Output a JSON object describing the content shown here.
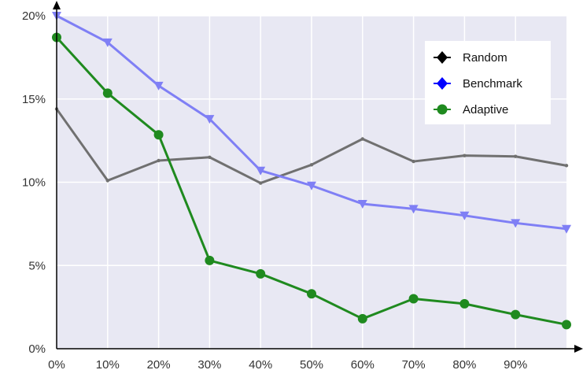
{
  "chart_data": {
    "type": "line",
    "x": [
      0,
      10,
      20,
      30,
      40,
      50,
      60,
      70,
      80,
      90,
      100
    ],
    "xlim": [
      0,
      100
    ],
    "ylim": [
      0,
      20
    ],
    "x_ticks": [
      {
        "value": 0,
        "label": "0%"
      },
      {
        "value": 10,
        "label": "10%"
      },
      {
        "value": 20,
        "label": "20%"
      },
      {
        "value": 30,
        "label": "30%"
      },
      {
        "value": 40,
        "label": "40%"
      },
      {
        "value": 50,
        "label": "50%"
      },
      {
        "value": 60,
        "label": "60%"
      },
      {
        "value": 70,
        "label": "70%"
      },
      {
        "value": 80,
        "label": "80%"
      },
      {
        "value": 90,
        "label": "90%"
      }
    ],
    "y_ticks": [
      {
        "value": 0,
        "label": "0%"
      },
      {
        "value": 5,
        "label": "5%"
      },
      {
        "value": 10,
        "label": "10%"
      },
      {
        "value": 15,
        "label": "15%"
      },
      {
        "value": 20,
        "label": "20%"
      }
    ],
    "grid": true,
    "legend_position": "top-right",
    "series": [
      {
        "name": "Random",
        "color": "#707070",
        "legend_color": "#000000",
        "marker": "diamond",
        "show_markers": false,
        "values": [
          14.4,
          10.1,
          11.3,
          11.5,
          9.95,
          11.05,
          12.6,
          11.25,
          11.6,
          11.55,
          11.0
        ]
      },
      {
        "name": "Benchmark",
        "color": "#7f7ff5",
        "legend_color": "#0000ff",
        "marker": "triangle-down",
        "show_markers": true,
        "values": [
          20.0,
          18.4,
          15.8,
          13.8,
          10.7,
          9.8,
          8.7,
          8.4,
          8.0,
          7.55,
          7.2
        ]
      },
      {
        "name": "Adaptive",
        "color": "#1f8a1f",
        "legend_color": "#1f8a1f",
        "marker": "circle",
        "show_markers": true,
        "values": [
          18.7,
          15.35,
          12.85,
          5.3,
          4.5,
          3.3,
          1.8,
          3.0,
          2.7,
          2.05,
          1.45
        ]
      }
    ]
  }
}
